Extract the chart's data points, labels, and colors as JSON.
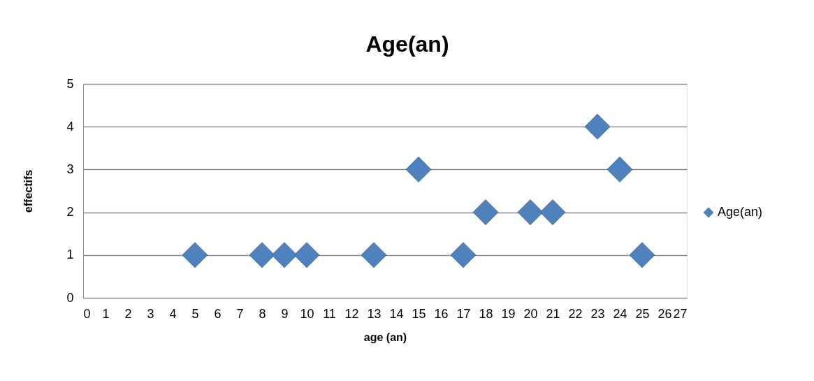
{
  "chart_data": {
    "type": "scatter",
    "title": "Age(an)",
    "xlabel": "age (an)",
    "ylabel": "effectifs",
    "x": [
      5,
      8,
      9,
      10,
      13,
      15,
      17,
      18,
      20,
      21,
      23,
      24,
      25
    ],
    "series": [
      {
        "name": "Age(an)",
        "color": "#4f81bd",
        "values": [
          1,
          1,
          1,
          1,
          1,
          3,
          1,
          2,
          2,
          2,
          4,
          3,
          1
        ]
      }
    ],
    "xlim": [
      0,
      27
    ],
    "xticks": [
      0,
      1,
      2,
      3,
      4,
      5,
      6,
      7,
      8,
      9,
      10,
      11,
      12,
      13,
      14,
      15,
      16,
      17,
      18,
      19,
      20,
      21,
      22,
      23,
      24,
      25,
      26,
      27
    ],
    "ylim": [
      0,
      5
    ],
    "yticks": [
      0,
      1,
      2,
      3,
      4,
      5
    ],
    "grid": "y",
    "legend": "right",
    "marker": "diamond"
  }
}
